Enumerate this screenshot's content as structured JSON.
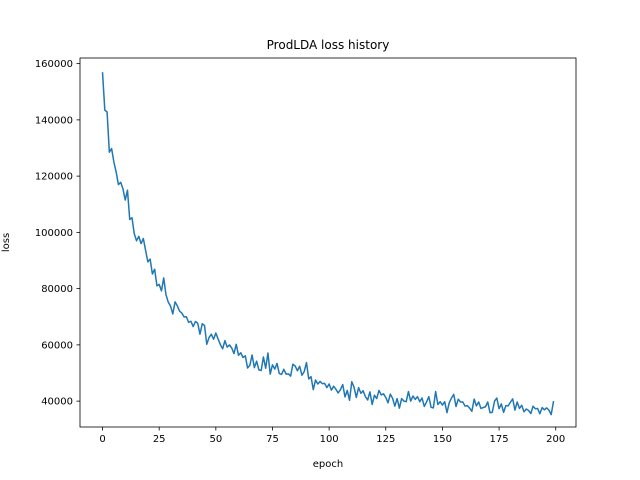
{
  "chart_data": {
    "type": "line",
    "title": "ProdLDA loss history",
    "xlabel": "epoch",
    "ylabel": "loss",
    "xlim": [
      -9.95,
      208.95
    ],
    "ylim": [
      30800,
      162000
    ],
    "xticks": [
      0,
      25,
      50,
      75,
      100,
      125,
      150,
      175,
      200
    ],
    "yticks": [
      40000,
      60000,
      80000,
      100000,
      120000,
      140000,
      160000
    ],
    "grid": false,
    "line_color": "#1f77b4",
    "series": [
      {
        "name": "",
        "x": [
          0,
          1,
          2,
          3,
          4,
          5,
          6,
          7,
          8,
          9,
          10,
          11,
          12,
          13,
          14,
          15,
          16,
          17,
          18,
          19,
          20,
          21,
          22,
          23,
          24,
          25,
          26,
          27,
          28,
          29,
          30,
          31,
          32,
          33,
          34,
          35,
          36,
          37,
          38,
          39,
          40,
          41,
          42,
          43,
          44,
          45,
          46,
          47,
          48,
          49,
          50,
          51,
          52,
          53,
          54,
          55,
          56,
          57,
          58,
          59,
          60,
          61,
          62,
          63,
          64,
          65,
          66,
          67,
          68,
          69,
          70,
          71,
          72,
          73,
          74,
          75,
          76,
          77,
          78,
          79,
          80,
          81,
          82,
          83,
          84,
          85,
          86,
          87,
          88,
          89,
          90,
          91,
          92,
          93,
          94,
          95,
          96,
          97,
          98,
          99,
          100,
          101,
          102,
          103,
          104,
          105,
          106,
          107,
          108,
          109,
          110,
          111,
          112,
          113,
          114,
          115,
          116,
          117,
          118,
          119,
          120,
          121,
          122,
          123,
          124,
          125,
          126,
          127,
          128,
          129,
          130,
          131,
          132,
          133,
          134,
          135,
          136,
          137,
          138,
          139,
          140,
          141,
          142,
          143,
          144,
          145,
          146,
          147,
          148,
          149,
          150,
          151,
          152,
          153,
          154,
          155,
          156,
          157,
          158,
          159,
          160,
          161,
          162,
          163,
          164,
          165,
          166,
          167,
          168,
          169,
          170,
          171,
          172,
          173,
          174,
          175,
          176,
          177,
          178,
          179,
          180,
          181,
          182,
          183,
          184,
          185,
          186,
          187,
          188,
          189,
          190,
          191,
          192,
          193,
          194,
          195,
          196,
          197,
          198,
          199
        ],
        "values": [
          156700,
          143500,
          142800,
          128500,
          129800,
          125000,
          121500,
          117000,
          117800,
          115500,
          111500,
          115000,
          104600,
          105200,
          99500,
          97000,
          98600,
          96000,
          97800,
          93600,
          89500,
          90500,
          85200,
          86900,
          81000,
          81500,
          79200,
          83800,
          77800,
          75200,
          73800,
          71000,
          75300,
          73900,
          72000,
          71300,
          69900,
          70000,
          68000,
          68400,
          66500,
          68300,
          67700,
          63800,
          67500,
          66900,
          60200,
          62600,
          63800,
          62000,
          64200,
          62100,
          60100,
          58600,
          61500,
          59200,
          60000,
          58900,
          56900,
          60200,
          56300,
          57200,
          55500,
          56100,
          51800,
          52700,
          56400,
          51900,
          54200,
          51100,
          50900,
          55700,
          51700,
          57100,
          49600,
          52900,
          51400,
          53400,
          49800,
          49500,
          51300,
          49600,
          49700,
          48900,
          53100,
          52500,
          50800,
          52400,
          49200,
          50500,
          53700,
          47900,
          48700,
          44100,
          47500,
          46100,
          47000,
          46200,
          46300,
          44800,
          46100,
          43900,
          45300,
          44200,
          42900,
          44100,
          45900,
          41500,
          43800,
          40300,
          46900,
          44900,
          41300,
          44800,
          42800,
          43700,
          41600,
          40400,
          43300,
          38800,
          42100,
          40900,
          43800,
          42200,
          42600,
          41300,
          39400,
          42500,
          41000,
          38200,
          40900,
          37500,
          40900,
          40000,
          39800,
          43400,
          40000,
          41800,
          40600,
          41600,
          39800,
          41100,
          38100,
          39700,
          41600,
          37800,
          37600,
          43400,
          38800,
          39800,
          38600,
          39800,
          35900,
          39400,
          41100,
          42400,
          38100,
          40700,
          39700,
          39700,
          38200,
          38400,
          37500,
          36400,
          40700,
          38300,
          39700,
          37400,
          37700,
          38000,
          39700,
          35900,
          36000,
          40000,
          41100,
          37300,
          39000,
          36000,
          38400,
          38300,
          39600,
          40800,
          36800,
          39700,
          37400,
          38500,
          36200,
          37200,
          36700,
          35600,
          38200,
          37300,
          37400,
          35500,
          37700,
          36900,
          37600,
          36800,
          35200,
          39800
        ]
      }
    ]
  }
}
